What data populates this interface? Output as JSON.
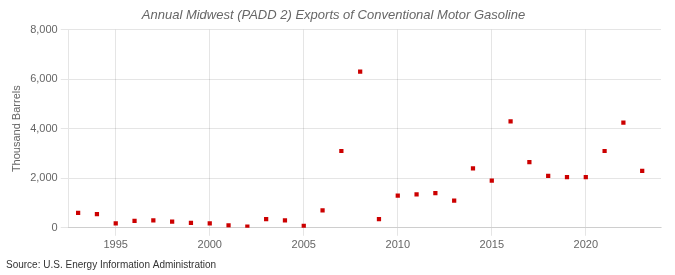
{
  "chart_data": {
    "type": "scatter",
    "title": "Annual Midwest (PADD 2) Exports of Conventional Motor Gasoline",
    "ylabel": "Thousand Barrels",
    "annotations": [
      "Source: U.S. Energy Information Administration"
    ],
    "x": [
      1993,
      1994,
      1995,
      1996,
      1997,
      1998,
      1999,
      2000,
      2001,
      2002,
      2003,
      2004,
      2005,
      2006,
      2007,
      2008,
      2009,
      2010,
      2011,
      2012,
      2013,
      2014,
      2015,
      2016,
      2017,
      2018,
      2019,
      2020,
      2021,
      2022,
      2023
    ],
    "values": [
      600,
      550,
      175,
      275,
      300,
      250,
      200,
      175,
      100,
      50,
      350,
      300,
      75,
      700,
      3100,
      6300,
      350,
      1300,
      1350,
      1400,
      1100,
      2400,
      1900,
      4300,
      2650,
      2100,
      2050,
      2050,
      3100,
      4250,
      2300
    ],
    "color": "#cc0000",
    "marker": "square",
    "xlim": [
      1992.5,
      2024
    ],
    "xticks": [
      1995,
      2000,
      2005,
      2010,
      2015,
      2020
    ],
    "ylim": [
      0,
      8000
    ],
    "yticks": [
      0,
      {
        "value": 2000,
        "label": "2,000"
      },
      {
        "value": 4000,
        "label": "4,000"
      },
      {
        "value": 6000,
        "label": "6,000"
      },
      {
        "value": 8000,
        "label": "8,000"
      }
    ],
    "grid": true
  }
}
